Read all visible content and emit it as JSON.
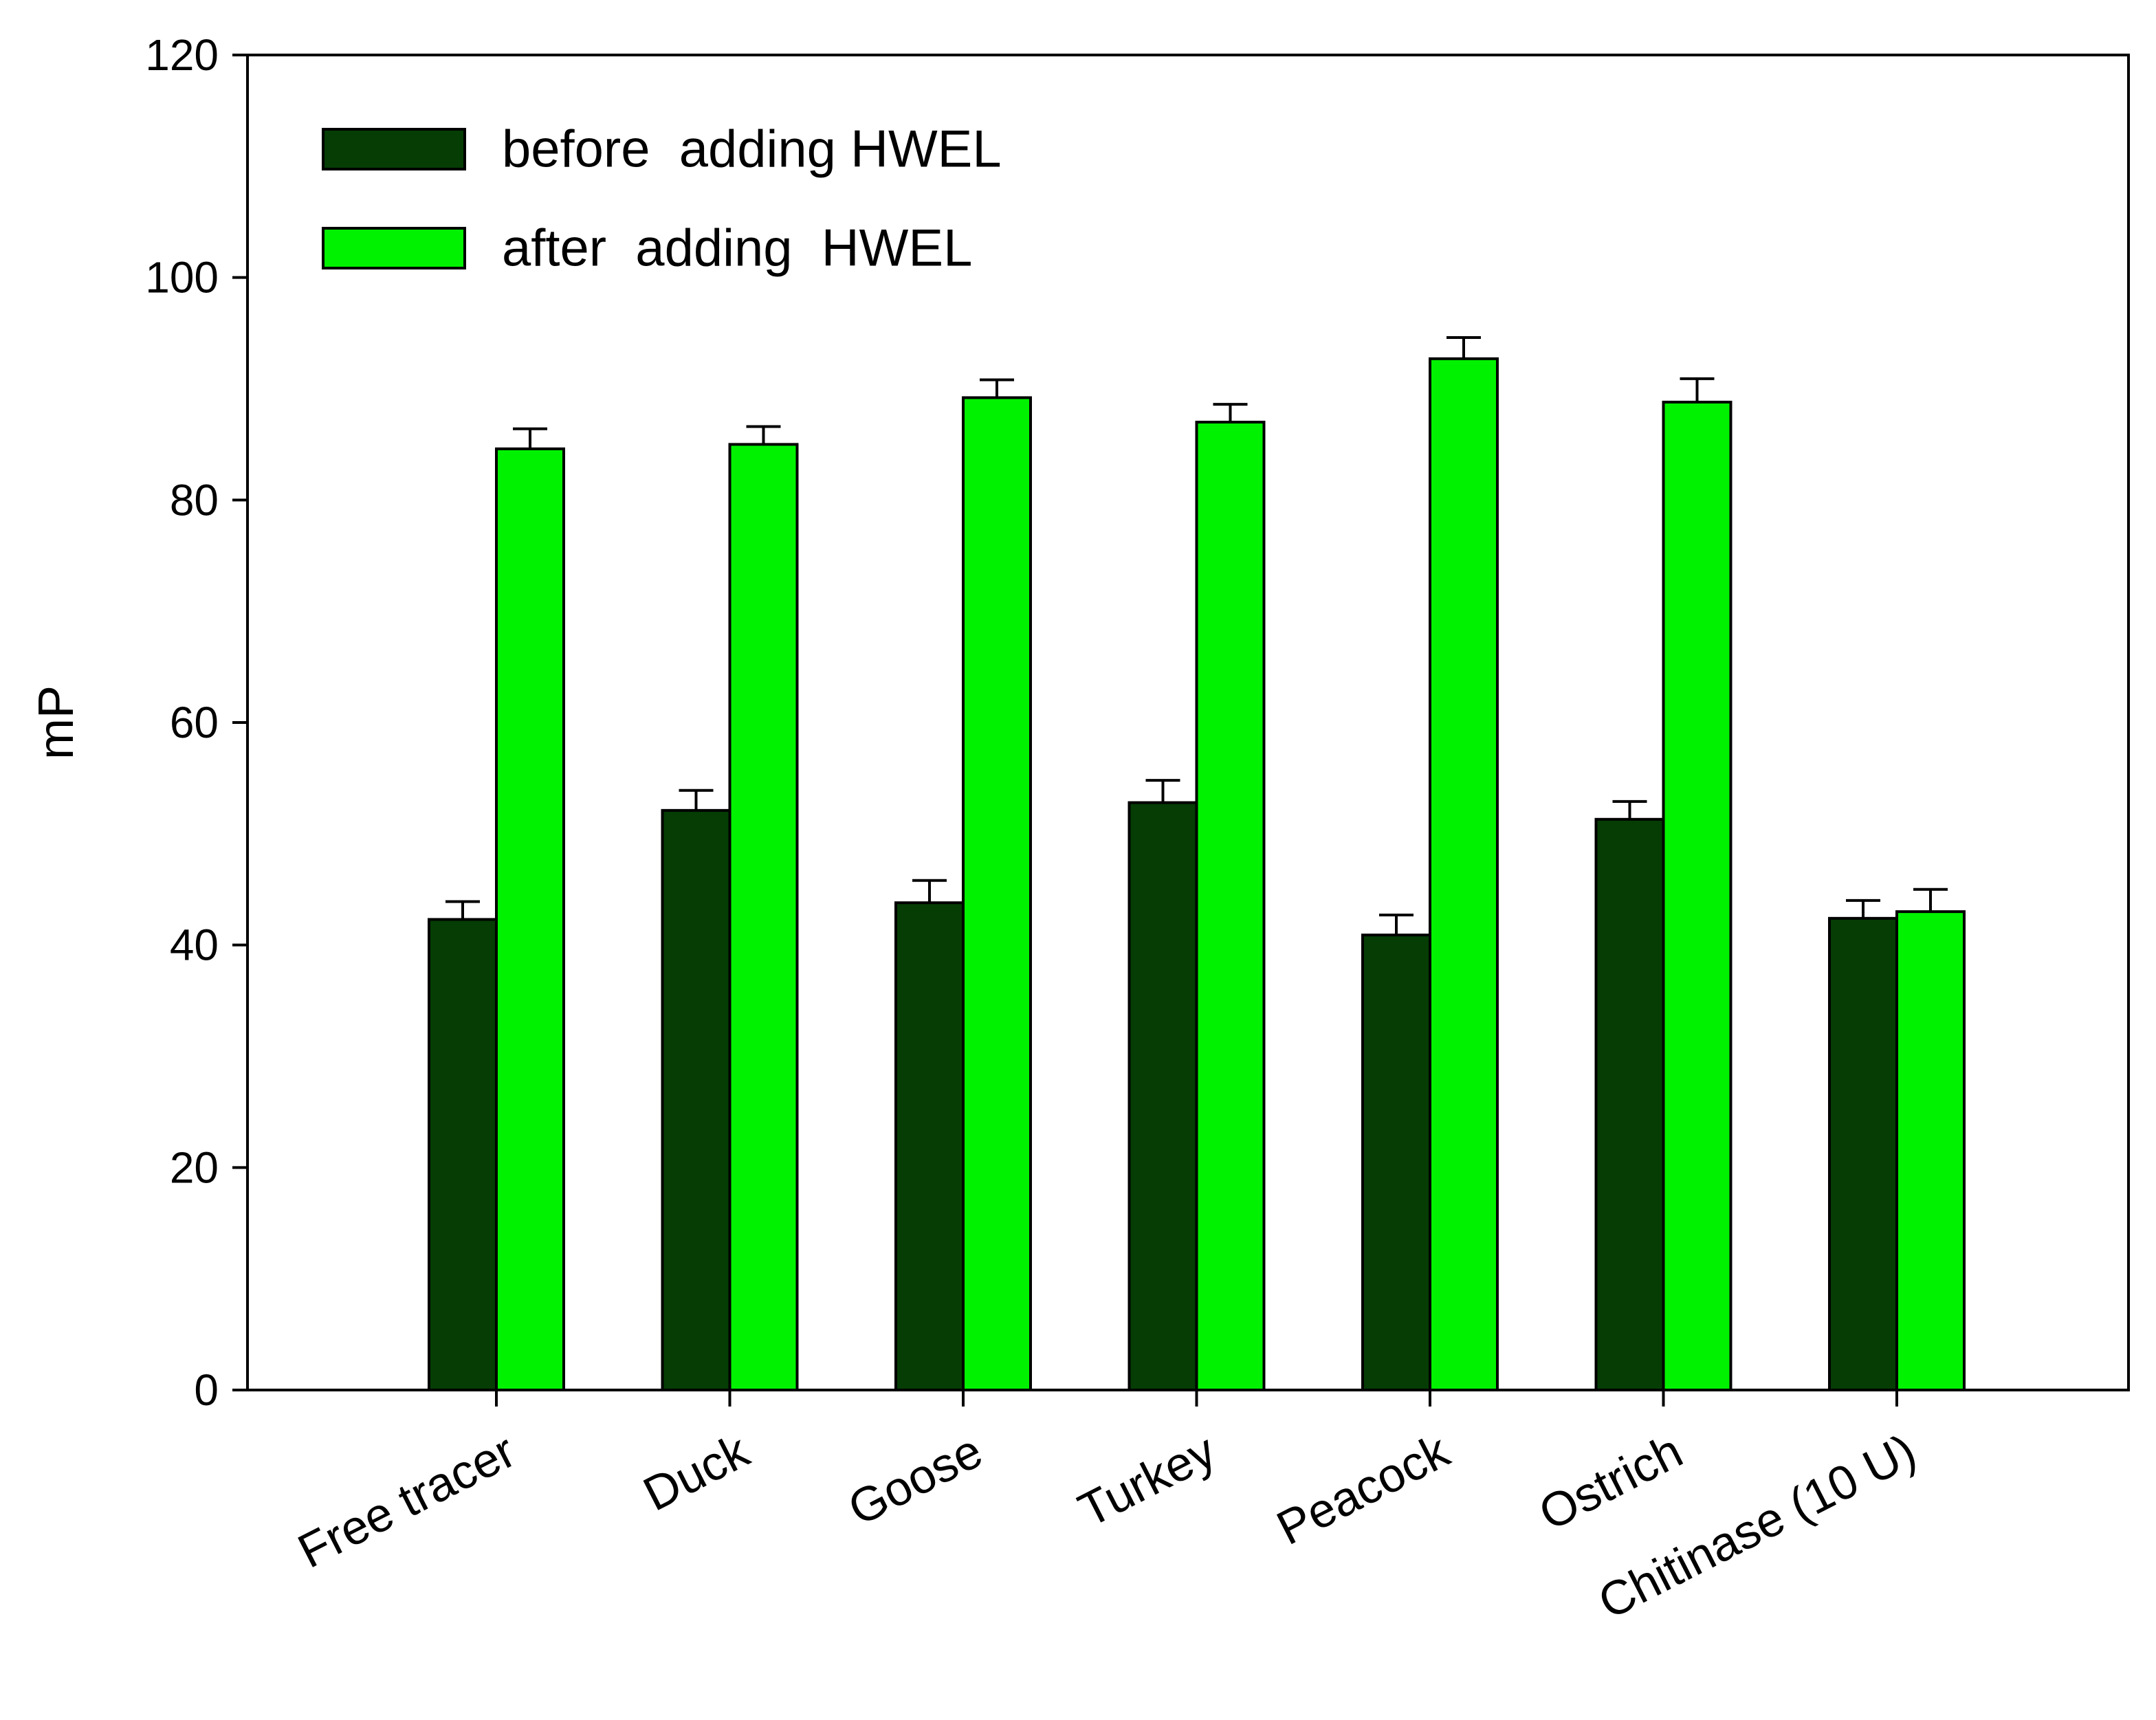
{
  "chart_data": {
    "type": "bar",
    "title": "",
    "xlabel": "",
    "ylabel": "mP",
    "ylim": [
      0,
      120
    ],
    "yticks": [
      0,
      20,
      40,
      60,
      80,
      100,
      120
    ],
    "ytick_labels": [
      "0",
      "20",
      "40",
      "60",
      "80",
      "100",
      "120"
    ],
    "categories": [
      "Free tracer",
      "Duck",
      "Goose",
      "Turkey",
      "Peacock",
      "Ostrich",
      "Chitinase (10 U)"
    ],
    "series": [
      {
        "name": "before  adding HWEL",
        "color": "#053d05",
        "values": [
          42.3,
          52.1,
          43.8,
          52.8,
          40.9,
          51.3,
          42.4
        ],
        "errors": [
          1.6,
          1.8,
          2.0,
          2.0,
          1.8,
          1.6,
          1.6
        ]
      },
      {
        "name": "after  adding  HWEL",
        "color": "#00f200",
        "values": [
          84.6,
          85.0,
          89.2,
          87.0,
          92.7,
          88.8,
          43.0
        ],
        "errors": [
          1.8,
          1.6,
          1.6,
          1.6,
          1.9,
          2.1,
          2.0
        ]
      }
    ],
    "legend": {
      "position": "top-left",
      "entries": [
        "before  adding HWEL",
        "after  adding  HWEL"
      ]
    },
    "grid": false,
    "error_bars": "upper"
  }
}
